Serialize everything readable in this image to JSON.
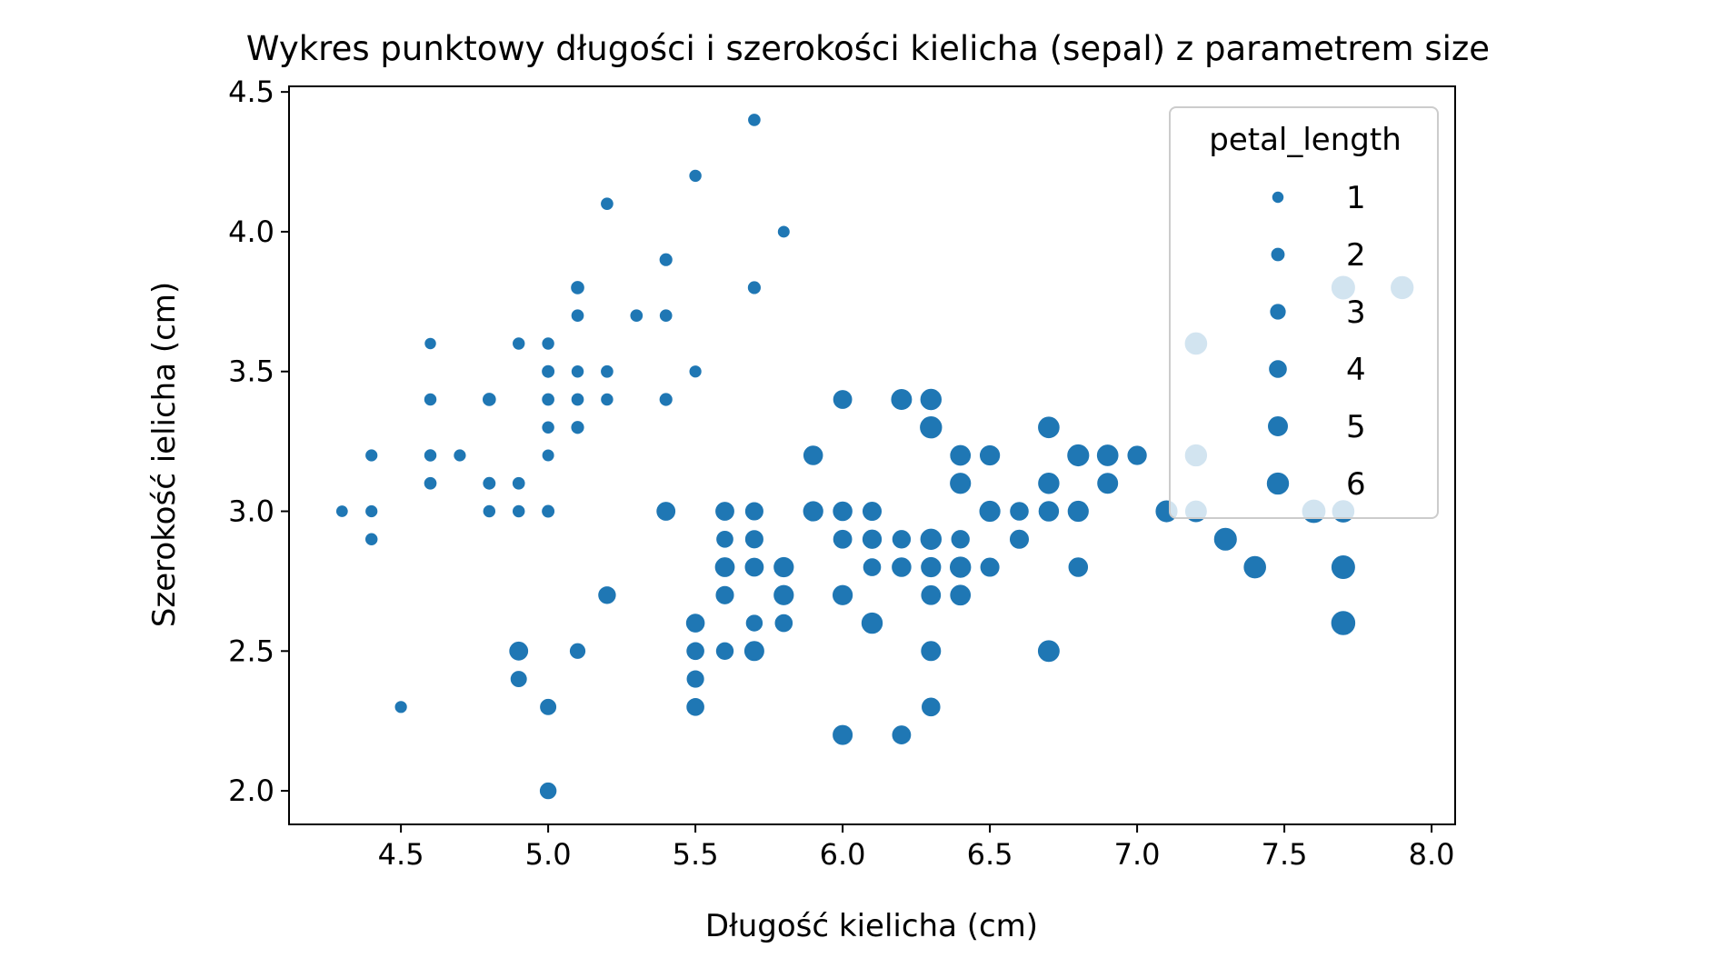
{
  "chart_data": {
    "type": "scatter",
    "title": "Wykres punktowy długości i szerokości kielicha (sepal) z parametrem size",
    "xlabel": "Długość kielicha (cm)",
    "ylabel": "Szerokość ielicha (cm)",
    "xlim": [
      4.12,
      8.08
    ],
    "ylim": [
      1.88,
      4.52
    ],
    "xticks": [
      "4.5",
      "5.0",
      "5.5",
      "6.0",
      "6.5",
      "7.0",
      "7.5",
      "8.0"
    ],
    "yticks": [
      "2.0",
      "2.5",
      "3.0",
      "3.5",
      "4.0",
      "4.5"
    ],
    "grid": false,
    "legend": {
      "title": "petal_length",
      "placement": "top-right",
      "entries": [
        {
          "label": "1",
          "size": 1
        },
        {
          "label": "2",
          "size": 2
        },
        {
          "label": "3",
          "size": 3
        },
        {
          "label": "4",
          "size": 4
        },
        {
          "label": "5",
          "size": 5
        },
        {
          "label": "6",
          "size": 6
        }
      ]
    },
    "marker_color": "#1f77b4",
    "size_variable": "petal_length",
    "points": [
      {
        "x": 4.3,
        "y": 3.0,
        "size": 1.1
      },
      {
        "x": 4.4,
        "y": 3.0,
        "size": 1.3
      },
      {
        "x": 4.4,
        "y": 2.9,
        "size": 1.4
      },
      {
        "x": 4.4,
        "y": 3.2,
        "size": 1.3
      },
      {
        "x": 4.5,
        "y": 2.3,
        "size": 1.3
      },
      {
        "x": 4.6,
        "y": 3.6,
        "size": 1.0
      },
      {
        "x": 4.6,
        "y": 3.4,
        "size": 1.4
      },
      {
        "x": 4.6,
        "y": 3.2,
        "size": 1.4
      },
      {
        "x": 4.6,
        "y": 3.1,
        "size": 1.5
      },
      {
        "x": 4.7,
        "y": 3.2,
        "size": 1.3
      },
      {
        "x": 4.8,
        "y": 3.4,
        "size": 1.9
      },
      {
        "x": 4.8,
        "y": 3.1,
        "size": 1.6
      },
      {
        "x": 4.8,
        "y": 3.0,
        "size": 1.4
      },
      {
        "x": 4.9,
        "y": 3.6,
        "size": 1.4
      },
      {
        "x": 4.9,
        "y": 3.1,
        "size": 1.5
      },
      {
        "x": 4.9,
        "y": 3.0,
        "size": 1.4
      },
      {
        "x": 4.9,
        "y": 2.5,
        "size": 4.5
      },
      {
        "x": 4.9,
        "y": 2.4,
        "size": 3.3
      },
      {
        "x": 5.0,
        "y": 3.6,
        "size": 1.4
      },
      {
        "x": 5.0,
        "y": 3.5,
        "size": 1.6
      },
      {
        "x": 5.0,
        "y": 3.4,
        "size": 1.5
      },
      {
        "x": 5.0,
        "y": 3.3,
        "size": 1.4
      },
      {
        "x": 5.0,
        "y": 3.2,
        "size": 1.2
      },
      {
        "x": 5.0,
        "y": 3.0,
        "size": 1.6
      },
      {
        "x": 5.0,
        "y": 2.3,
        "size": 3.3
      },
      {
        "x": 5.0,
        "y": 2.0,
        "size": 3.5
      },
      {
        "x": 5.1,
        "y": 3.8,
        "size": 1.9
      },
      {
        "x": 5.1,
        "y": 3.7,
        "size": 1.5
      },
      {
        "x": 5.1,
        "y": 3.5,
        "size": 1.4
      },
      {
        "x": 5.1,
        "y": 3.4,
        "size": 1.5
      },
      {
        "x": 5.1,
        "y": 3.3,
        "size": 1.7
      },
      {
        "x": 5.1,
        "y": 2.5,
        "size": 3.0
      },
      {
        "x": 5.2,
        "y": 4.1,
        "size": 1.5
      },
      {
        "x": 5.2,
        "y": 3.5,
        "size": 1.5
      },
      {
        "x": 5.2,
        "y": 3.4,
        "size": 1.4
      },
      {
        "x": 5.2,
        "y": 2.7,
        "size": 3.9
      },
      {
        "x": 5.3,
        "y": 3.7,
        "size": 1.5
      },
      {
        "x": 5.4,
        "y": 3.9,
        "size": 1.7
      },
      {
        "x": 5.4,
        "y": 3.7,
        "size": 1.5
      },
      {
        "x": 5.4,
        "y": 3.4,
        "size": 1.7
      },
      {
        "x": 5.4,
        "y": 3.0,
        "size": 4.5
      },
      {
        "x": 5.5,
        "y": 4.2,
        "size": 1.4
      },
      {
        "x": 5.5,
        "y": 3.5,
        "size": 1.3
      },
      {
        "x": 5.5,
        "y": 2.6,
        "size": 4.4
      },
      {
        "x": 5.5,
        "y": 2.5,
        "size": 4.0
      },
      {
        "x": 5.5,
        "y": 2.4,
        "size": 3.8
      },
      {
        "x": 5.5,
        "y": 2.3,
        "size": 4.0
      },
      {
        "x": 5.6,
        "y": 3.0,
        "size": 4.5
      },
      {
        "x": 5.6,
        "y": 2.9,
        "size": 3.6
      },
      {
        "x": 5.6,
        "y": 2.8,
        "size": 4.9
      },
      {
        "x": 5.6,
        "y": 2.7,
        "size": 4.2
      },
      {
        "x": 5.6,
        "y": 2.5,
        "size": 3.9
      },
      {
        "x": 5.7,
        "y": 4.4,
        "size": 1.5
      },
      {
        "x": 5.7,
        "y": 3.8,
        "size": 1.7
      },
      {
        "x": 5.7,
        "y": 3.0,
        "size": 4.2
      },
      {
        "x": 5.7,
        "y": 2.9,
        "size": 4.2
      },
      {
        "x": 5.7,
        "y": 2.8,
        "size": 4.5
      },
      {
        "x": 5.7,
        "y": 2.6,
        "size": 3.5
      },
      {
        "x": 5.7,
        "y": 2.5,
        "size": 5.0
      },
      {
        "x": 5.8,
        "y": 4.0,
        "size": 1.2
      },
      {
        "x": 5.8,
        "y": 2.8,
        "size": 5.1
      },
      {
        "x": 5.8,
        "y": 2.7,
        "size": 5.1
      },
      {
        "x": 5.8,
        "y": 2.6,
        "size": 4.0
      },
      {
        "x": 5.9,
        "y": 3.2,
        "size": 4.8
      },
      {
        "x": 5.9,
        "y": 3.0,
        "size": 5.1
      },
      {
        "x": 6.0,
        "y": 3.4,
        "size": 4.5
      },
      {
        "x": 6.0,
        "y": 3.0,
        "size": 4.8
      },
      {
        "x": 6.0,
        "y": 2.9,
        "size": 4.5
      },
      {
        "x": 6.0,
        "y": 2.7,
        "size": 5.1
      },
      {
        "x": 6.0,
        "y": 2.2,
        "size": 5.0
      },
      {
        "x": 6.1,
        "y": 3.0,
        "size": 4.6
      },
      {
        "x": 6.1,
        "y": 2.9,
        "size": 4.7
      },
      {
        "x": 6.1,
        "y": 2.8,
        "size": 4.0
      },
      {
        "x": 6.1,
        "y": 2.6,
        "size": 5.6
      },
      {
        "x": 6.2,
        "y": 3.4,
        "size": 5.4
      },
      {
        "x": 6.2,
        "y": 2.9,
        "size": 4.3
      },
      {
        "x": 6.2,
        "y": 2.8,
        "size": 4.8
      },
      {
        "x": 6.2,
        "y": 2.2,
        "size": 4.5
      },
      {
        "x": 6.3,
        "y": 3.4,
        "size": 5.6
      },
      {
        "x": 6.3,
        "y": 3.3,
        "size": 6.0
      },
      {
        "x": 6.3,
        "y": 2.9,
        "size": 5.6
      },
      {
        "x": 6.3,
        "y": 2.8,
        "size": 5.1
      },
      {
        "x": 6.3,
        "y": 2.7,
        "size": 4.9
      },
      {
        "x": 6.3,
        "y": 2.5,
        "size": 5.0
      },
      {
        "x": 6.3,
        "y": 2.3,
        "size": 4.4
      },
      {
        "x": 6.4,
        "y": 3.2,
        "size": 5.3
      },
      {
        "x": 6.4,
        "y": 3.1,
        "size": 5.5
      },
      {
        "x": 6.4,
        "y": 2.9,
        "size": 4.3
      },
      {
        "x": 6.4,
        "y": 2.8,
        "size": 5.6
      },
      {
        "x": 6.4,
        "y": 2.7,
        "size": 5.3
      },
      {
        "x": 6.5,
        "y": 3.2,
        "size": 5.1
      },
      {
        "x": 6.5,
        "y": 3.0,
        "size": 5.5
      },
      {
        "x": 6.5,
        "y": 2.8,
        "size": 4.6
      },
      {
        "x": 6.6,
        "y": 3.0,
        "size": 4.4
      },
      {
        "x": 6.6,
        "y": 2.9,
        "size": 4.6
      },
      {
        "x": 6.7,
        "y": 3.3,
        "size": 5.7
      },
      {
        "x": 6.7,
        "y": 3.1,
        "size": 5.6
      },
      {
        "x": 6.7,
        "y": 3.0,
        "size": 5.2
      },
      {
        "x": 6.7,
        "y": 2.5,
        "size": 5.8
      },
      {
        "x": 6.8,
        "y": 3.2,
        "size": 5.9
      },
      {
        "x": 6.8,
        "y": 3.0,
        "size": 5.5
      },
      {
        "x": 6.8,
        "y": 2.8,
        "size": 4.8
      },
      {
        "x": 6.9,
        "y": 3.2,
        "size": 5.7
      },
      {
        "x": 6.9,
        "y": 3.1,
        "size": 5.4
      },
      {
        "x": 7.0,
        "y": 3.2,
        "size": 4.7
      },
      {
        "x": 7.1,
        "y": 3.0,
        "size": 5.9
      },
      {
        "x": 7.2,
        "y": 3.6,
        "size": 6.1
      },
      {
        "x": 7.2,
        "y": 3.2,
        "size": 6.0
      },
      {
        "x": 7.2,
        "y": 3.0,
        "size": 5.8
      },
      {
        "x": 7.3,
        "y": 2.9,
        "size": 6.3
      },
      {
        "x": 7.4,
        "y": 2.8,
        "size": 6.1
      },
      {
        "x": 7.6,
        "y": 3.0,
        "size": 6.6
      },
      {
        "x": 7.7,
        "y": 3.8,
        "size": 6.7
      },
      {
        "x": 7.7,
        "y": 3.0,
        "size": 6.1
      },
      {
        "x": 7.7,
        "y": 2.8,
        "size": 6.7
      },
      {
        "x": 7.7,
        "y": 2.6,
        "size": 6.9
      },
      {
        "x": 7.9,
        "y": 3.8,
        "size": 6.4
      }
    ]
  }
}
